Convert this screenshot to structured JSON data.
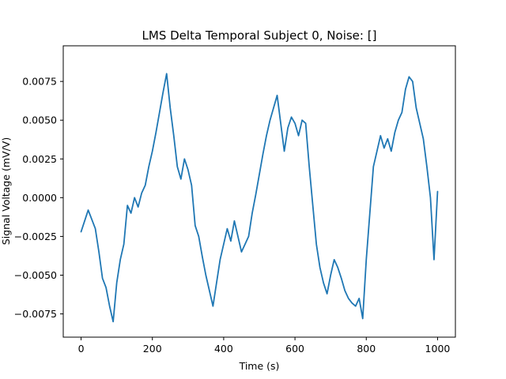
{
  "chart_data": {
    "type": "line",
    "title": "LMS Delta Temporal Subject 0, Noise: []",
    "xlabel": "Time (s)",
    "ylabel": "Signal Voltage (mV/V)",
    "xlim": [
      -50,
      1050
    ],
    "ylim": [
      -0.009,
      0.0098
    ],
    "xticks": [
      0,
      200,
      400,
      600,
      800,
      1000
    ],
    "yticks": [
      -0.0075,
      -0.005,
      -0.0025,
      0.0,
      0.0025,
      0.005,
      0.0075
    ],
    "ytick_labels": [
      "−0.0075",
      "−0.0050",
      "−0.0025",
      "0.0000",
      "0.0025",
      "0.0050",
      "0.0075"
    ],
    "grid": false,
    "series": [
      {
        "color": "#1f77b4",
        "x": [
          0,
          10,
          20,
          30,
          40,
          50,
          60,
          70,
          80,
          90,
          100,
          110,
          120,
          130,
          140,
          150,
          160,
          170,
          180,
          190,
          200,
          210,
          220,
          230,
          240,
          250,
          260,
          270,
          280,
          290,
          300,
          310,
          320,
          330,
          340,
          350,
          360,
          370,
          380,
          390,
          400,
          410,
          420,
          430,
          440,
          450,
          460,
          470,
          480,
          490,
          500,
          510,
          520,
          530,
          540,
          550,
          560,
          570,
          580,
          590,
          600,
          610,
          620,
          630,
          640,
          650,
          660,
          670,
          680,
          690,
          700,
          710,
          720,
          730,
          740,
          750,
          760,
          770,
          780,
          790,
          800,
          810,
          820,
          830,
          840,
          850,
          860,
          870,
          880,
          890,
          900,
          910,
          920,
          930,
          940,
          950,
          960,
          970,
          980,
          990,
          1000
        ],
        "y": [
          -0.0022,
          -0.0015,
          -0.0008,
          -0.0014,
          -0.002,
          -0.0035,
          -0.0052,
          -0.0058,
          -0.007,
          -0.008,
          -0.0055,
          -0.004,
          -0.003,
          -0.0005,
          -0.001,
          0.0,
          -0.0006,
          0.0003,
          0.0008,
          0.002,
          0.003,
          0.0042,
          0.0055,
          0.0068,
          0.008,
          0.0058,
          0.004,
          0.002,
          0.0012,
          0.0025,
          0.0018,
          0.0008,
          -0.0018,
          -0.0025,
          -0.0038,
          -0.005,
          -0.006,
          -0.007,
          -0.0055,
          -0.004,
          -0.003,
          -0.002,
          -0.0028,
          -0.0015,
          -0.0025,
          -0.0035,
          -0.003,
          -0.0025,
          -0.001,
          0.0002,
          0.0015,
          0.0028,
          0.004,
          0.005,
          0.0058,
          0.0066,
          0.0048,
          0.003,
          0.0045,
          0.0052,
          0.0048,
          0.004,
          0.005,
          0.0048,
          0.002,
          -0.0005,
          -0.003,
          -0.0045,
          -0.0055,
          -0.0062,
          -0.005,
          -0.004,
          -0.0045,
          -0.0052,
          -0.006,
          -0.0065,
          -0.0068,
          -0.007,
          -0.0065,
          -0.0078,
          -0.004,
          -0.001,
          0.002,
          0.003,
          0.004,
          0.0032,
          0.0038,
          0.003,
          0.0042,
          0.005,
          0.0055,
          0.007,
          0.0078,
          0.0075,
          0.0058,
          0.0048,
          0.0038,
          0.002,
          0.0,
          -0.004,
          0.0004
        ]
      }
    ]
  }
}
